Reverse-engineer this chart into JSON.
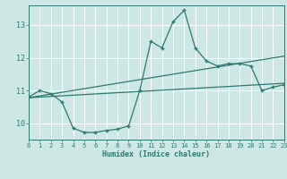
{
  "xlabel": "Humidex (Indice chaleur)",
  "background_color": "#cde8e4",
  "line_color": "#2d7870",
  "grid_color": "#b8d8d4",
  "xlim": [
    0,
    23
  ],
  "ylim": [
    9.5,
    13.6
  ],
  "xticks": [
    0,
    1,
    2,
    3,
    4,
    5,
    6,
    7,
    8,
    9,
    10,
    11,
    12,
    13,
    14,
    15,
    16,
    17,
    18,
    19,
    20,
    21,
    22,
    23
  ],
  "yticks": [
    10,
    11,
    12,
    13
  ],
  "main_x": [
    0,
    1,
    2,
    3,
    4,
    5,
    6,
    7,
    8,
    9,
    10,
    11,
    12,
    13,
    14,
    15,
    16,
    17,
    18,
    19,
    20,
    21,
    22,
    23
  ],
  "main_y": [
    10.8,
    11.0,
    10.9,
    10.65,
    9.85,
    9.72,
    9.72,
    9.78,
    9.82,
    9.92,
    11.0,
    12.5,
    12.3,
    13.1,
    13.45,
    12.3,
    11.9,
    11.75,
    11.82,
    11.82,
    11.75,
    11.0,
    11.1,
    11.18
  ],
  "line2_x": [
    0,
    23
  ],
  "line2_y": [
    10.78,
    12.05
  ],
  "line3_x": [
    0,
    23
  ],
  "line3_y": [
    10.78,
    11.22
  ]
}
